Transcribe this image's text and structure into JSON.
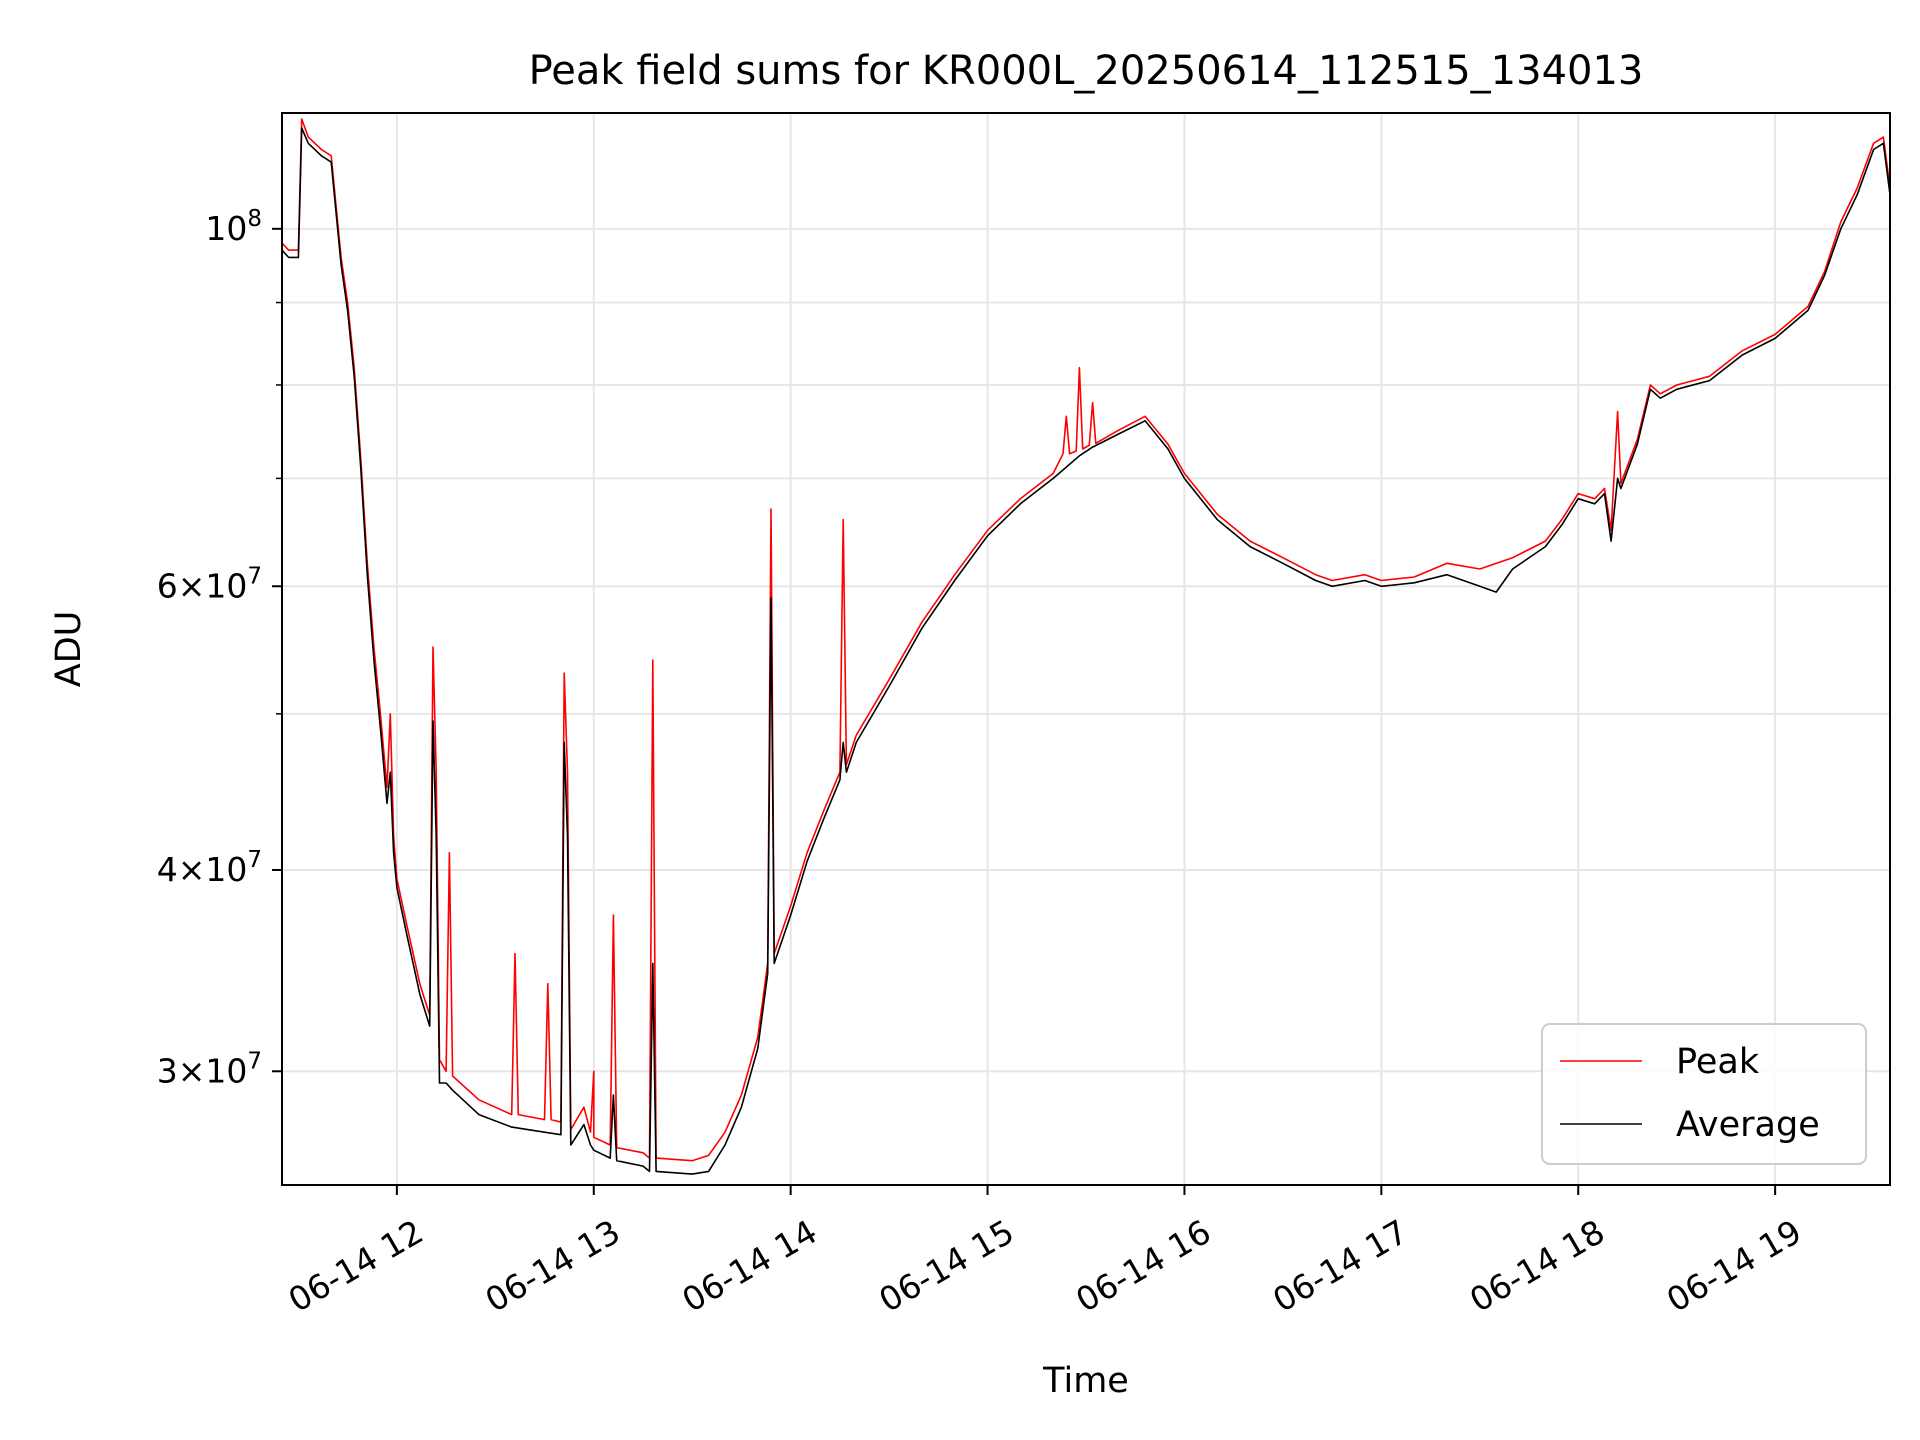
{
  "chart_data": {
    "type": "line",
    "title": "Peak field sums for KR000L_20250614_112515_134013",
    "xlabel": "Time",
    "ylabel": "ADU",
    "x_scale": "time",
    "y_scale": "log",
    "xlim": [
      "2025-06-14 11:25",
      "2025-06-14 19:35"
    ],
    "ylim": [
      25500000,
      118000000
    ],
    "x_ticks": [
      "06-14 12",
      "06-14 13",
      "06-14 14",
      "06-14 15",
      "06-14 16",
      "06-14 17",
      "06-14 18",
      "06-14 19"
    ],
    "y_ticks": [
      {
        "value": 30000000,
        "mant": "3",
        "exp": "7"
      },
      {
        "value": 40000000,
        "mant": "4",
        "exp": "7"
      },
      {
        "value": 60000000,
        "mant": "6",
        "exp": "7"
      },
      {
        "value": 100000000,
        "mant": "",
        "exp": "8"
      }
    ],
    "y_minor_ticks": [
      50000000,
      70000000,
      80000000,
      90000000
    ],
    "grid": true,
    "legend_position": "lower right",
    "series": [
      {
        "name": "Peak",
        "color": "#ff0000",
        "points": [
          [
            "2025-06-14 11:25",
            98000000
          ],
          [
            "2025-06-14 11:27",
            97000000
          ],
          [
            "2025-06-14 11:30",
            97000000
          ],
          [
            "2025-06-14 11:31",
            117000000
          ],
          [
            "2025-06-14 11:33",
            114000000
          ],
          [
            "2025-06-14 11:37",
            112000000
          ],
          [
            "2025-06-14 11:40",
            111000000
          ],
          [
            "2025-06-14 11:43",
            96000000
          ],
          [
            "2025-06-14 11:45",
            90000000
          ],
          [
            "2025-06-14 11:47",
            82000000
          ],
          [
            "2025-06-14 11:49",
            72000000
          ],
          [
            "2025-06-14 11:51",
            62000000
          ],
          [
            "2025-06-14 11:53",
            55000000
          ],
          [
            "2025-06-14 11:55",
            50000000
          ],
          [
            "2025-06-14 11:57",
            45000000
          ],
          [
            "2025-06-14 11:58",
            50000000
          ],
          [
            "2025-06-14 11:59",
            42000000
          ],
          [
            "2025-06-14 12:00",
            39500000
          ],
          [
            "2025-06-14 12:03",
            37000000
          ],
          [
            "2025-06-14 12:07",
            34000000
          ],
          [
            "2025-06-14 12:10",
            32500000
          ],
          [
            "2025-06-14 12:11",
            55000000
          ],
          [
            "2025-06-14 12:12",
            46000000
          ],
          [
            "2025-06-14 12:13",
            30500000
          ],
          [
            "2025-06-14 12:15",
            30000000
          ],
          [
            "2025-06-14 12:16",
            41000000
          ],
          [
            "2025-06-14 12:17",
            29800000
          ],
          [
            "2025-06-14 12:25",
            28800000
          ],
          [
            "2025-06-14 12:35",
            28200000
          ],
          [
            "2025-06-14 12:36",
            35500000
          ],
          [
            "2025-06-14 12:37",
            28200000
          ],
          [
            "2025-06-14 12:45",
            28000000
          ],
          [
            "2025-06-14 12:46",
            34000000
          ],
          [
            "2025-06-14 12:47",
            28000000
          ],
          [
            "2025-06-14 12:50",
            27900000
          ],
          [
            "2025-06-14 12:51",
            53000000
          ],
          [
            "2025-06-14 12:52",
            46000000
          ],
          [
            "2025-06-14 12:53",
            27600000
          ],
          [
            "2025-06-14 12:57",
            28500000
          ],
          [
            "2025-06-14 12:59",
            27500000
          ],
          [
            "2025-06-14 12:60",
            30000000
          ],
          [
            "2025-06-14 13:00",
            27300000
          ],
          [
            "2025-06-14 13:05",
            27000000
          ],
          [
            "2025-06-14 13:06",
            37500000
          ],
          [
            "2025-06-14 13:07",
            26900000
          ],
          [
            "2025-06-14 13:15",
            26700000
          ],
          [
            "2025-06-14 13:17",
            26500000
          ],
          [
            "2025-06-14 13:18",
            54000000
          ],
          [
            "2025-06-14 13:19",
            26500000
          ],
          [
            "2025-06-14 13:30",
            26400000
          ],
          [
            "2025-06-14 13:35",
            26600000
          ],
          [
            "2025-06-14 13:40",
            27500000
          ],
          [
            "2025-06-14 13:45",
            29000000
          ],
          [
            "2025-06-14 13:50",
            31500000
          ],
          [
            "2025-06-14 13:53",
            35000000
          ],
          [
            "2025-06-14 13:54",
            67000000
          ],
          [
            "2025-06-14 13:55",
            35500000
          ],
          [
            "2025-06-14 14:00",
            38000000
          ],
          [
            "2025-06-14 14:05",
            41000000
          ],
          [
            "2025-06-14 14:10",
            43500000
          ],
          [
            "2025-06-14 14:15",
            46000000
          ],
          [
            "2025-06-14 14:16",
            66000000
          ],
          [
            "2025-06-14 14:17",
            46500000
          ],
          [
            "2025-06-14 14:20",
            48500000
          ],
          [
            "2025-06-14 14:30",
            52500000
          ],
          [
            "2025-06-14 14:40",
            57000000
          ],
          [
            "2025-06-14 14:50",
            61000000
          ],
          [
            "2025-06-14 15:00",
            65000000
          ],
          [
            "2025-06-14 15:10",
            68000000
          ],
          [
            "2025-06-14 15:20",
            70500000
          ],
          [
            "2025-06-14 15:23",
            72500000
          ],
          [
            "2025-06-14 15:24",
            76500000
          ],
          [
            "2025-06-14 15:25",
            72500000
          ],
          [
            "2025-06-14 15:27",
            72800000
          ],
          [
            "2025-06-14 15:28",
            82000000
          ],
          [
            "2025-06-14 15:29",
            73000000
          ],
          [
            "2025-06-14 15:31",
            73400000
          ],
          [
            "2025-06-14 15:32",
            78000000
          ],
          [
            "2025-06-14 15:33",
            73600000
          ],
          [
            "2025-06-14 15:40",
            75000000
          ],
          [
            "2025-06-14 15:48",
            76500000
          ],
          [
            "2025-06-14 15:55",
            73500000
          ],
          [
            "2025-06-14 16:00",
            70500000
          ],
          [
            "2025-06-14 16:10",
            66500000
          ],
          [
            "2025-06-14 16:20",
            64000000
          ],
          [
            "2025-06-14 16:30",
            62500000
          ],
          [
            "2025-06-14 16:40",
            61000000
          ],
          [
            "2025-06-14 16:45",
            60500000
          ],
          [
            "2025-06-14 16:55",
            61000000
          ],
          [
            "2025-06-14 17:00",
            60500000
          ],
          [
            "2025-06-14 17:10",
            60800000
          ],
          [
            "2025-06-14 17:20",
            62000000
          ],
          [
            "2025-06-14 17:30",
            61500000
          ],
          [
            "2025-06-14 17:40",
            62500000
          ],
          [
            "2025-06-14 17:50",
            64000000
          ],
          [
            "2025-06-14 17:55",
            66000000
          ],
          [
            "2025-06-14 18:00",
            68500000
          ],
          [
            "2025-06-14 18:05",
            68000000
          ],
          [
            "2025-06-14 18:08",
            69000000
          ],
          [
            "2025-06-14 18:10",
            65000000
          ],
          [
            "2025-06-14 18:12",
            77000000
          ],
          [
            "2025-06-14 18:13",
            69500000
          ],
          [
            "2025-06-14 18:18",
            74000000
          ],
          [
            "2025-06-14 18:22",
            80000000
          ],
          [
            "2025-06-14 18:25",
            79000000
          ],
          [
            "2025-06-14 18:30",
            80000000
          ],
          [
            "2025-06-14 18:40",
            81000000
          ],
          [
            "2025-06-14 18:50",
            84000000
          ],
          [
            "2025-06-14 19:00",
            86000000
          ],
          [
            "2025-06-14 19:10",
            89500000
          ],
          [
            "2025-06-14 19:15",
            94000000
          ],
          [
            "2025-06-14 19:20",
            101000000
          ],
          [
            "2025-06-14 19:25",
            106000000
          ],
          [
            "2025-06-14 19:30",
            113000000
          ],
          [
            "2025-06-14 19:33",
            114000000
          ],
          [
            "2025-06-14 19:35",
            106000000
          ]
        ]
      },
      {
        "name": "Average",
        "color": "#000000",
        "points": [
          [
            "2025-06-14 11:25",
            97000000
          ],
          [
            "2025-06-14 11:27",
            96000000
          ],
          [
            "2025-06-14 11:30",
            96000000
          ],
          [
            "2025-06-14 11:31",
            115500000
          ],
          [
            "2025-06-14 11:33",
            113000000
          ],
          [
            "2025-06-14 11:37",
            111000000
          ],
          [
            "2025-06-14 11:40",
            110000000
          ],
          [
            "2025-06-14 11:43",
            95000000
          ],
          [
            "2025-06-14 11:45",
            89000000
          ],
          [
            "2025-06-14 11:47",
            81000000
          ],
          [
            "2025-06-14 11:49",
            71000000
          ],
          [
            "2025-06-14 11:51",
            61000000
          ],
          [
            "2025-06-14 11:53",
            54000000
          ],
          [
            "2025-06-14 11:55",
            49000000
          ],
          [
            "2025-06-14 11:57",
            44000000
          ],
          [
            "2025-06-14 11:58",
            46000000
          ],
          [
            "2025-06-14 11:59",
            41000000
          ],
          [
            "2025-06-14 12:00",
            39000000
          ],
          [
            "2025-06-14 12:03",
            36500000
          ],
          [
            "2025-06-14 12:07",
            33500000
          ],
          [
            "2025-06-14 12:10",
            32000000
          ],
          [
            "2025-06-14 12:11",
            49500000
          ],
          [
            "2025-06-14 12:12",
            42000000
          ],
          [
            "2025-06-14 12:13",
            29500000
          ],
          [
            "2025-06-14 12:15",
            29500000
          ],
          [
            "2025-06-14 12:17",
            29200000
          ],
          [
            "2025-06-14 12:25",
            28200000
          ],
          [
            "2025-06-14 12:35",
            27700000
          ],
          [
            "2025-06-14 12:45",
            27500000
          ],
          [
            "2025-06-14 12:50",
            27400000
          ],
          [
            "2025-06-14 12:51",
            48000000
          ],
          [
            "2025-06-14 12:52",
            42000000
          ],
          [
            "2025-06-14 12:53",
            27000000
          ],
          [
            "2025-06-14 12:57",
            27800000
          ],
          [
            "2025-06-14 12:59",
            27000000
          ],
          [
            "2025-06-14 13:00",
            26800000
          ],
          [
            "2025-06-14 13:05",
            26500000
          ],
          [
            "2025-06-14 13:06",
            29000000
          ],
          [
            "2025-06-14 13:07",
            26400000
          ],
          [
            "2025-06-14 13:15",
            26200000
          ],
          [
            "2025-06-14 13:17",
            26000000
          ],
          [
            "2025-06-14 13:18",
            35000000
          ],
          [
            "2025-06-14 13:19",
            26000000
          ],
          [
            "2025-06-14 13:30",
            25900000
          ],
          [
            "2025-06-14 13:35",
            26000000
          ],
          [
            "2025-06-14 13:40",
            27000000
          ],
          [
            "2025-06-14 13:45",
            28500000
          ],
          [
            "2025-06-14 13:50",
            31000000
          ],
          [
            "2025-06-14 13:53",
            34500000
          ],
          [
            "2025-06-14 13:54",
            59000000
          ],
          [
            "2025-06-14 13:55",
            35000000
          ],
          [
            "2025-06-14 14:00",
            37500000
          ],
          [
            "2025-06-14 14:05",
            40500000
          ],
          [
            "2025-06-14 14:10",
            43000000
          ],
          [
            "2025-06-14 14:15",
            45500000
          ],
          [
            "2025-06-14 14:16",
            48000000
          ],
          [
            "2025-06-14 14:17",
            46000000
          ],
          [
            "2025-06-14 14:20",
            48000000
          ],
          [
            "2025-06-14 14:30",
            52000000
          ],
          [
            "2025-06-14 14:40",
            56500000
          ],
          [
            "2025-06-14 14:50",
            60500000
          ],
          [
            "2025-06-14 15:00",
            64500000
          ],
          [
            "2025-06-14 15:10",
            67500000
          ],
          [
            "2025-06-14 15:20",
            70000000
          ],
          [
            "2025-06-14 15:28",
            72300000
          ],
          [
            "2025-06-14 15:32",
            73200000
          ],
          [
            "2025-06-14 15:40",
            74600000
          ],
          [
            "2025-06-14 15:48",
            76000000
          ],
          [
            "2025-06-14 15:55",
            73000000
          ],
          [
            "2025-06-14 16:00",
            70000000
          ],
          [
            "2025-06-14 16:10",
            66000000
          ],
          [
            "2025-06-14 16:20",
            63500000
          ],
          [
            "2025-06-14 16:30",
            62000000
          ],
          [
            "2025-06-14 16:40",
            60500000
          ],
          [
            "2025-06-14 16:45",
            60000000
          ],
          [
            "2025-06-14 16:55",
            60500000
          ],
          [
            "2025-06-14 17:00",
            60000000
          ],
          [
            "2025-06-14 17:10",
            60300000
          ],
          [
            "2025-06-14 17:20",
            61000000
          ],
          [
            "2025-06-14 17:30",
            60000000
          ],
          [
            "2025-06-14 17:35",
            59500000
          ],
          [
            "2025-06-14 17:40",
            61500000
          ],
          [
            "2025-06-14 17:50",
            63500000
          ],
          [
            "2025-06-14 17:55",
            65500000
          ],
          [
            "2025-06-14 18:00",
            68000000
          ],
          [
            "2025-06-14 18:05",
            67500000
          ],
          [
            "2025-06-14 18:08",
            68500000
          ],
          [
            "2025-06-14 18:10",
            64000000
          ],
          [
            "2025-06-14 18:12",
            70000000
          ],
          [
            "2025-06-14 18:13",
            69000000
          ],
          [
            "2025-06-14 18:18",
            73500000
          ],
          [
            "2025-06-14 18:22",
            79500000
          ],
          [
            "2025-06-14 18:25",
            78500000
          ],
          [
            "2025-06-14 18:30",
            79500000
          ],
          [
            "2025-06-14 18:40",
            80500000
          ],
          [
            "2025-06-14 18:50",
            83500000
          ],
          [
            "2025-06-14 19:00",
            85500000
          ],
          [
            "2025-06-14 19:10",
            89000000
          ],
          [
            "2025-06-14 19:15",
            93500000
          ],
          [
            "2025-06-14 19:20",
            100000000
          ],
          [
            "2025-06-14 19:25",
            105000000
          ],
          [
            "2025-06-14 19:30",
            112000000
          ],
          [
            "2025-06-14 19:33",
            113000000
          ],
          [
            "2025-06-14 19:35",
            105000000
          ]
        ]
      }
    ]
  }
}
